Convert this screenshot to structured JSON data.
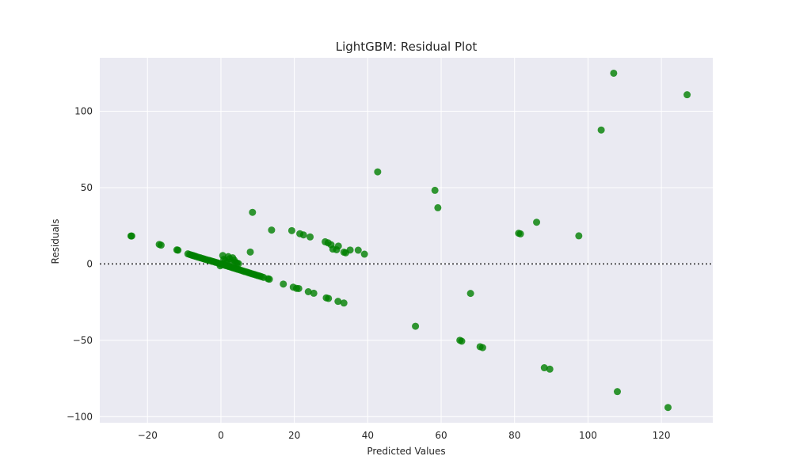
{
  "chart_data": {
    "type": "scatter",
    "title": "LightGBM: Residual Plot",
    "xlabel": "Predicted Values",
    "ylabel": "Residuals",
    "xlim": [
      -33,
      134
    ],
    "ylim": [
      -104,
      135
    ],
    "xticks": [
      -20,
      0,
      20,
      40,
      60,
      80,
      100,
      120
    ],
    "yticks": [
      -100,
      -50,
      0,
      50,
      100
    ],
    "xtick_labels": [
      "−20",
      "0",
      "20",
      "40",
      "60",
      "80",
      "100",
      "120"
    ],
    "ytick_labels": [
      "−100",
      "−50",
      "0",
      "50",
      "100"
    ],
    "grid": true,
    "zero_line": true,
    "colors": {
      "points": "#008000",
      "background": "#eaeaf2",
      "grid": "#ffffff",
      "zero_line": "#222222"
    },
    "points": [
      [
        -24.5,
        18.3
      ],
      [
        -24.3,
        18.3
      ],
      [
        -16.8,
        12.8
      ],
      [
        -16.3,
        12.3
      ],
      [
        -12.0,
        9.2
      ],
      [
        -11.7,
        9.0
      ],
      [
        -9.0,
        6.6
      ],
      [
        -8.5,
        6.2
      ],
      [
        -8.0,
        5.8
      ],
      [
        -7.6,
        5.5
      ],
      [
        -7.2,
        5.2
      ],
      [
        -6.8,
        4.9
      ],
      [
        -6.2,
        4.4
      ],
      [
        -5.6,
        4.0
      ],
      [
        -5.0,
        3.6
      ],
      [
        -4.5,
        3.2
      ],
      [
        -4.0,
        2.8
      ],
      [
        -3.5,
        2.5
      ],
      [
        -3.0,
        2.2
      ],
      [
        -2.5,
        1.8
      ],
      [
        -2.0,
        1.5
      ],
      [
        -1.5,
        1.1
      ],
      [
        -1.0,
        0.8
      ],
      [
        -0.5,
        0.4
      ],
      [
        0.0,
        0.0
      ],
      [
        0.3,
        -0.3
      ],
      [
        0.6,
        -0.5
      ],
      [
        1.0,
        -0.8
      ],
      [
        1.4,
        -1.1
      ],
      [
        1.8,
        -1.4
      ],
      [
        2.2,
        -1.7
      ],
      [
        2.6,
        -2.0
      ],
      [
        3.0,
        -2.3
      ],
      [
        3.4,
        -2.6
      ],
      [
        3.8,
        -2.9
      ],
      [
        4.2,
        -3.2
      ],
      [
        4.6,
        -3.5
      ],
      [
        5.0,
        -3.8
      ],
      [
        5.5,
        -4.2
      ],
      [
        6.0,
        -4.6
      ],
      [
        6.5,
        -5.0
      ],
      [
        7.0,
        -5.3
      ],
      [
        7.5,
        -5.7
      ],
      [
        8.0,
        -6.1
      ],
      [
        8.5,
        -6.5
      ],
      [
        9.0,
        -6.8
      ],
      [
        9.5,
        -7.2
      ],
      [
        10.0,
        -7.6
      ],
      [
        10.5,
        -7.9
      ],
      [
        11.0,
        -8.3
      ],
      [
        11.6,
        -8.8
      ],
      [
        12.8,
        -9.7
      ],
      [
        13.2,
        -10.0
      ],
      [
        -0.2,
        -1.2
      ],
      [
        0.5,
        5.5
      ],
      [
        0.8,
        3.0
      ],
      [
        1.2,
        2.0
      ],
      [
        1.6,
        1.0
      ],
      [
        2.0,
        4.8
      ],
      [
        2.4,
        3.5
      ],
      [
        2.8,
        1.5
      ],
      [
        3.2,
        4.0
      ],
      [
        3.6,
        2.5
      ],
      [
        4.0,
        1.0
      ],
      [
        4.4,
        0.5
      ],
      [
        4.8,
        0.2
      ],
      [
        8.0,
        7.8
      ],
      [
        8.6,
        33.8
      ],
      [
        13.8,
        22.2
      ],
      [
        19.3,
        21.8
      ],
      [
        21.5,
        19.8
      ],
      [
        22.5,
        19.0
      ],
      [
        24.3,
        17.7
      ],
      [
        28.4,
        14.5
      ],
      [
        29.2,
        13.8
      ],
      [
        30.0,
        12.6
      ],
      [
        30.5,
        9.7
      ],
      [
        31.5,
        9.3
      ],
      [
        32.0,
        11.7
      ],
      [
        33.5,
        7.7
      ],
      [
        34.0,
        7.3
      ],
      [
        35.2,
        9.1
      ],
      [
        37.4,
        9.0
      ],
      [
        39.1,
        6.4
      ],
      [
        17.0,
        -13.2
      ],
      [
        19.7,
        -15.2
      ],
      [
        20.6,
        -16.0
      ],
      [
        21.2,
        -16.1
      ],
      [
        23.8,
        -18.2
      ],
      [
        25.3,
        -19.2
      ],
      [
        28.7,
        -22.2
      ],
      [
        29.3,
        -22.6
      ],
      [
        31.9,
        -24.5
      ],
      [
        33.5,
        -25.6
      ],
      [
        42.7,
        60.3
      ],
      [
        53.0,
        -40.8
      ],
      [
        58.3,
        48.2
      ],
      [
        59.1,
        36.8
      ],
      [
        65.1,
        -50.0
      ],
      [
        65.6,
        -50.6
      ],
      [
        68.0,
        -19.3
      ],
      [
        70.6,
        -54.2
      ],
      [
        71.3,
        -54.8
      ],
      [
        81.1,
        20.1
      ],
      [
        81.6,
        19.7
      ],
      [
        86.0,
        27.3
      ],
      [
        88.1,
        -68.0
      ],
      [
        89.6,
        -68.9
      ],
      [
        97.5,
        18.4
      ],
      [
        103.6,
        87.7
      ],
      [
        107.0,
        124.9
      ],
      [
        108.0,
        -83.6
      ],
      [
        121.8,
        -94.0
      ],
      [
        127.0,
        110.8
      ]
    ]
  }
}
